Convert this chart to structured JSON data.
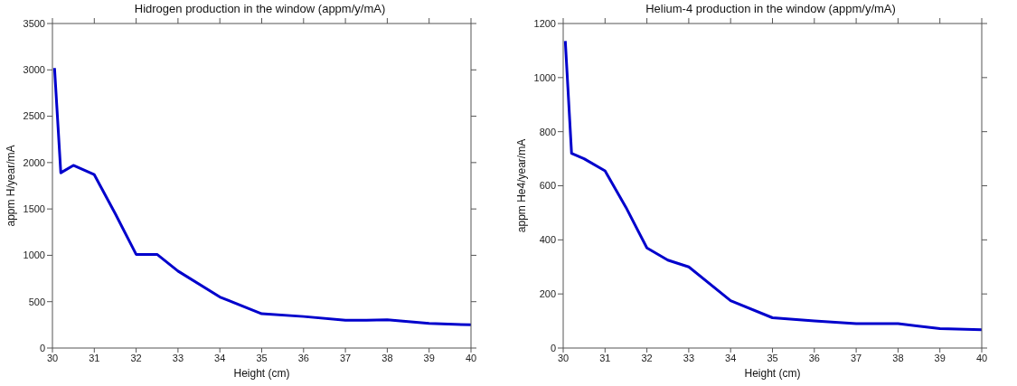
{
  "chart_data": [
    {
      "type": "line",
      "title": "Hidrogen production in the window (appm/y/mA)",
      "xlabel": "Height (cm)",
      "ylabel": "appm H/year/mA",
      "x": [
        30.05,
        30.2,
        30.5,
        31,
        31.5,
        32,
        32.5,
        33,
        34,
        35,
        36,
        37,
        37.5,
        38,
        39,
        40
      ],
      "series": [
        {
          "color": "#0000cc",
          "values": [
            3020,
            1890,
            1970,
            1870,
            1450,
            1010,
            1010,
            830,
            550,
            370,
            340,
            300,
            300,
            305,
            265,
            250
          ]
        }
      ],
      "xlim": [
        30,
        40
      ],
      "xticks": [
        30,
        31,
        32,
        33,
        34,
        35,
        36,
        37,
        38,
        39,
        40
      ],
      "ylim": [
        0,
        3500
      ],
      "yticks": [
        0,
        500,
        1000,
        1500,
        2000,
        2500,
        3000,
        3500
      ],
      "grid": false,
      "legend": false,
      "marker": "none",
      "line_style": "solid"
    },
    {
      "type": "line",
      "title": "Helium-4 production in the window (appm/y/mA)",
      "xlabel": "Height (cm)",
      "ylabel": "appm He4/year/mA",
      "x": [
        30.05,
        30.2,
        30.5,
        31,
        31.5,
        32,
        32.5,
        33,
        34,
        35,
        36,
        37,
        38,
        39,
        40
      ],
      "series": [
        {
          "color": "#0000cc",
          "values": [
            1135,
            720,
            700,
            655,
            520,
            370,
            325,
            300,
            175,
            112,
            100,
            90,
            90,
            72,
            68
          ]
        }
      ],
      "xlim": [
        30,
        40
      ],
      "xticks": [
        30,
        31,
        32,
        33,
        34,
        35,
        36,
        37,
        38,
        39,
        40
      ],
      "ylim": [
        0,
        1200
      ],
      "yticks": [
        0,
        200,
        400,
        600,
        800,
        1000,
        1200
      ],
      "grid": false,
      "legend": false,
      "marker": "none",
      "line_style": "solid"
    }
  ]
}
